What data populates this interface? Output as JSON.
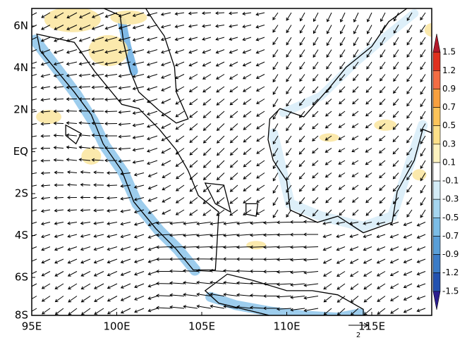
{
  "map": {
    "lat_labels": [
      "6N",
      "4N",
      "2N",
      "EQ",
      "2S",
      "4S",
      "6S",
      "8S"
    ],
    "lon_labels": [
      "95E",
      "100E",
      "105E",
      "110E",
      "115E"
    ]
  },
  "colorbar": {
    "labels": [
      1.5,
      1.2,
      0.9,
      0.7,
      0.5,
      0.3,
      0.1,
      -0.1,
      -0.3,
      -0.5,
      -0.7,
      -0.9,
      -1.2,
      -1.5
    ],
    "colors": [
      "#b2182b",
      "#e0301e",
      "#f46d43",
      "#f9a03f",
      "#fdc45a",
      "#fde089",
      "#fdf3c0",
      "#ffffff",
      "#d4ecf7",
      "#a6d6f0",
      "#7cbde6",
      "#5a9fd8",
      "#3b7cc7",
      "#2352b0",
      "#2a1d8f"
    ]
  },
  "reference_vector": {
    "label": "2"
  }
}
